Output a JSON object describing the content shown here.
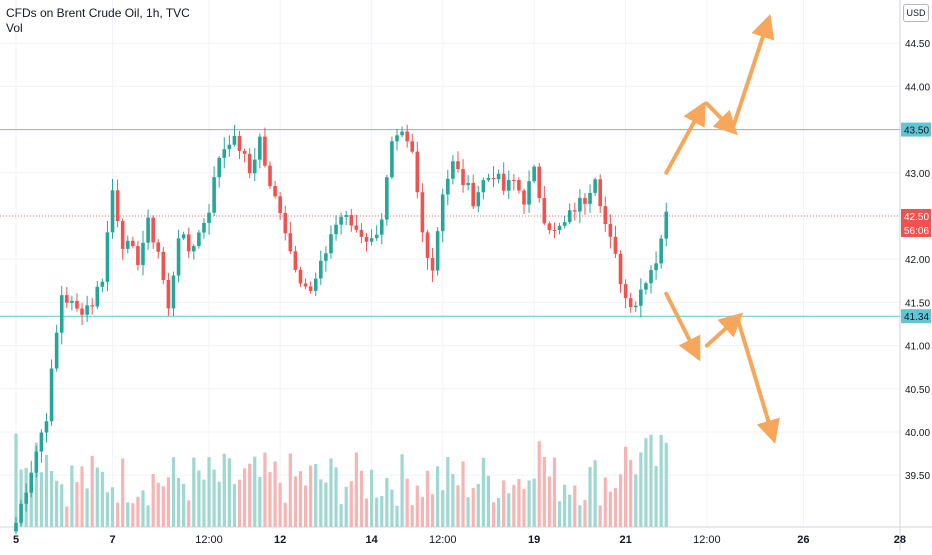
{
  "legend": {
    "title": "CFDs on Brent Crude Oil, 1h, TVC",
    "volume_label": "Vol"
  },
  "currency": "USD",
  "colors": {
    "up": "#26a69a",
    "down": "#ef5350",
    "vol_up": "#9fd7d1",
    "vol_down": "#f5b5b4",
    "level_line": "#5fc7d3",
    "arrow": "#f6a75c",
    "grid": "#f0f3fa",
    "axis_text": "#131722",
    "last_price_line": "#ef5350"
  },
  "chart_data": {
    "type": "candlestick",
    "symbol": "CFDs on Brent Crude Oil",
    "interval": "1h",
    "source": "TVC",
    "ylim": [
      38.9,
      45.0
    ],
    "y_ticks": [
      "44.50",
      "44.00",
      "43.50",
      "43.00",
      "42.50",
      "42.00",
      "41.50",
      "41.00",
      "40.50",
      "40.00",
      "39.50"
    ],
    "x_ticks": [
      "5",
      "7",
      "12:00",
      "12",
      "14",
      "12:00",
      "19",
      "21",
      "12:00",
      "26",
      "28"
    ],
    "x_tick_index": [
      0,
      19,
      38,
      52,
      70,
      84,
      102,
      120,
      136,
      155,
      174
    ],
    "price_labels": [
      {
        "text": "43.50",
        "value": 43.5,
        "kind": "level"
      },
      {
        "text": "42.50",
        "value": 42.5,
        "kind": "last"
      },
      {
        "text": "56:06",
        "value": 42.5,
        "kind": "countdown"
      },
      {
        "text": "41.34",
        "value": 41.34,
        "kind": "level"
      }
    ],
    "horizontal_levels": [
      43.5,
      41.34
    ],
    "last_price": 42.5,
    "anchor_points": [
      [
        0,
        38.95
      ],
      [
        6,
        40.2
      ],
      [
        9,
        41.6
      ],
      [
        12,
        41.4
      ],
      [
        15,
        41.5
      ],
      [
        17,
        41.8
      ],
      [
        19,
        42.8
      ],
      [
        21,
        42.2
      ],
      [
        24,
        42.0
      ],
      [
        26,
        42.4
      ],
      [
        28,
        42.1
      ],
      [
        30,
        41.4
      ],
      [
        32,
        42.3
      ],
      [
        34,
        42.1
      ],
      [
        36,
        42.3
      ],
      [
        38,
        42.6
      ],
      [
        40,
        43.2
      ],
      [
        42,
        43.4
      ],
      [
        44,
        43.3
      ],
      [
        46,
        43.0
      ],
      [
        48,
        43.4
      ],
      [
        50,
        42.8
      ],
      [
        52,
        42.6
      ],
      [
        54,
        42.1
      ],
      [
        56,
        41.8
      ],
      [
        58,
        41.6
      ],
      [
        60,
        41.9
      ],
      [
        62,
        42.3
      ],
      [
        64,
        42.5
      ],
      [
        66,
        42.4
      ],
      [
        68,
        42.3
      ],
      [
        70,
        42.2
      ],
      [
        72,
        42.5
      ],
      [
        74,
        43.3
      ],
      [
        76,
        43.4
      ],
      [
        78,
        43.2
      ],
      [
        80,
        42.3
      ],
      [
        82,
        41.9
      ],
      [
        84,
        42.8
      ],
      [
        86,
        43.1
      ],
      [
        88,
        42.9
      ],
      [
        90,
        42.7
      ],
      [
        92,
        42.9
      ],
      [
        94,
        43.0
      ],
      [
        96,
        42.8
      ],
      [
        98,
        42.9
      ],
      [
        100,
        42.7
      ],
      [
        102,
        43.0
      ],
      [
        104,
        42.5
      ],
      [
        106,
        42.3
      ],
      [
        108,
        42.4
      ],
      [
        110,
        42.6
      ],
      [
        112,
        42.7
      ],
      [
        114,
        43.0
      ],
      [
        116,
        42.4
      ],
      [
        118,
        42.0
      ],
      [
        120,
        41.55
      ],
      [
        122,
        41.5
      ],
      [
        124,
        41.8
      ],
      [
        126,
        42.0
      ],
      [
        128,
        42.55
      ]
    ],
    "arrows": [
      {
        "from": [
          128,
          43.0
        ],
        "to": [
          135,
          43.75
        ]
      },
      {
        "from": [
          136,
          43.8
        ],
        "to": [
          141,
          43.5
        ]
      },
      {
        "from": [
          141,
          43.5
        ],
        "to": [
          148,
          44.75
        ]
      },
      {
        "from": [
          128,
          41.6
        ],
        "to": [
          134,
          40.9
        ]
      },
      {
        "from": [
          136,
          41.0
        ],
        "to": [
          142,
          41.32
        ]
      },
      {
        "from": [
          142,
          41.32
        ],
        "to": [
          149,
          39.95
        ]
      }
    ]
  }
}
